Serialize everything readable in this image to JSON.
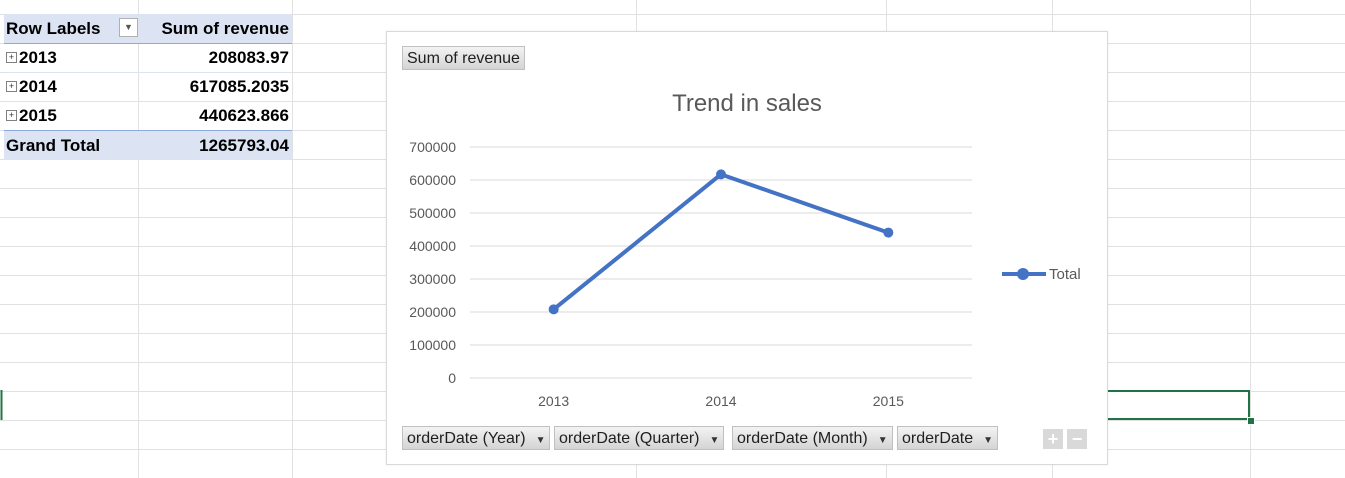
{
  "pivot": {
    "header": {
      "row_labels": "Row Labels",
      "sum_label": "Sum of revenue"
    },
    "rows": [
      {
        "label": "2013",
        "value": "208083.97"
      },
      {
        "label": "2014",
        "value": "617085.2035"
      },
      {
        "label": "2015",
        "value": "440623.866"
      }
    ],
    "total": {
      "label": "Grand Total",
      "value": "1265793.04"
    }
  },
  "chart": {
    "value_field_button": "Sum of revenue",
    "axis_field_buttons": [
      "orderDate (Year)",
      "orderDate (Quarter)",
      "orderDate (Month)",
      "orderDate"
    ],
    "plus_label": "+",
    "minus_label": "−"
  },
  "chart_data": {
    "type": "line",
    "title": "Trend in sales",
    "categories": [
      "2013",
      "2014",
      "2015"
    ],
    "series": [
      {
        "name": "Total",
        "values": [
          208083.97,
          617085.2035,
          440623.866
        ],
        "color": "#4472c4"
      }
    ],
    "ylim": [
      0,
      700000
    ],
    "yticks": [
      "0",
      "100000",
      "200000",
      "300000",
      "400000",
      "500000",
      "600000",
      "700000"
    ],
    "grid": true,
    "legend": "right",
    "xlabel": "",
    "ylabel": ""
  },
  "colors": {
    "pivot_header": "#dce3f2",
    "series": "#4472c4",
    "selection": "#217346"
  }
}
